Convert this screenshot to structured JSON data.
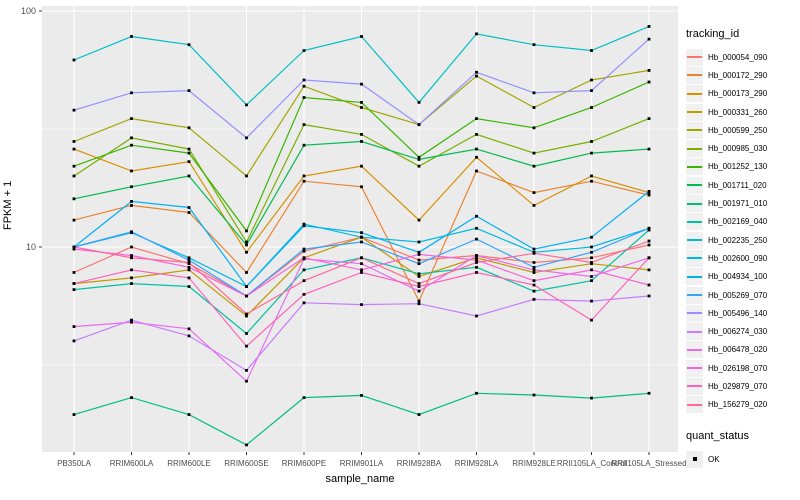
{
  "chart_data": {
    "type": "line",
    "xlabel": "sample_name",
    "ylabel": "FPKM + 1",
    "y_scale": "log10",
    "ylim": [
      1.3,
      105
    ],
    "grid": true,
    "panel_bg": "#EBEBEB",
    "grid_color": "#FFFFFF",
    "marker_color": "#000000",
    "marker_shape": "square",
    "y_ticks": [
      {
        "label": "100",
        "value": 100
      },
      {
        "label": "10",
        "value": 10
      }
    ],
    "y_minor": [
      31.62,
      3.162
    ],
    "categories": [
      "PB350LA",
      "RRIM600LA",
      "RRIM600LE",
      "RRIM600SE",
      "RRIM600PE",
      "RRIM901LA",
      "RRIM928BA",
      "RRIM928LA",
      "RRIM928LE",
      "RRII105LA_Control",
      "RRII105LA_Stressed"
    ],
    "legend_title": "tracking_id",
    "quant_legend_title": "quant_status",
    "quant_status_label": "OK",
    "series": [
      {
        "name": "Hb_000054_090",
        "color": "#F8766D",
        "values": [
          7.8,
          10,
          8.5,
          6.2,
          9.6,
          11,
          8.8,
          9.2,
          8.6,
          9,
          10.2
        ]
      },
      {
        "name": "Hb_000172_290",
        "color": "#EA8331",
        "values": [
          13,
          15,
          14,
          7.8,
          19,
          18,
          5.9,
          21,
          17,
          19,
          16.6
        ]
      },
      {
        "name": "Hb_000173_290",
        "color": "#D89000",
        "values": [
          26,
          21,
          23,
          9.5,
          20,
          22,
          13,
          24,
          15,
          20,
          17
        ]
      },
      {
        "name": "Hb_000331_260",
        "color": "#C09B00",
        "values": [
          7,
          7.4,
          8,
          5.1,
          9,
          11,
          7.5,
          9,
          7.8,
          8.5,
          8
        ]
      },
      {
        "name": "Hb_000599_250",
        "color": "#A3A500",
        "values": [
          28,
          35,
          32,
          20,
          48,
          39,
          33,
          53,
          39,
          51,
          56
        ]
      },
      {
        "name": "Hb_000985_030",
        "color": "#7CAE00",
        "values": [
          20,
          29,
          26,
          10.5,
          33,
          30,
          22,
          30,
          25,
          28,
          35
        ]
      },
      {
        "name": "Hb_001252_130",
        "color": "#39B600",
        "values": [
          22,
          27,
          25,
          11.7,
          43,
          41,
          24,
          35,
          32,
          39,
          50
        ]
      },
      {
        "name": "Hb_001711_020",
        "color": "#00BB4E",
        "values": [
          16,
          18,
          20,
          10.2,
          27,
          28,
          23.5,
          26,
          22,
          25,
          26
        ]
      },
      {
        "name": "Hb_001971_010",
        "color": "#00BF7D",
        "values": [
          1.95,
          2.3,
          1.95,
          1.45,
          2.3,
          2.35,
          1.95,
          2.4,
          2.36,
          2.29,
          2.4
        ]
      },
      {
        "name": "Hb_002169_040",
        "color": "#00C1A3",
        "values": [
          6.6,
          7,
          6.8,
          4.3,
          8,
          9,
          7.7,
          8.2,
          6.5,
          7.2,
          11.8
        ]
      },
      {
        "name": "Hb_002235_250",
        "color": "#00BFC4",
        "values": [
          62,
          78,
          72,
          40,
          68,
          78,
          41,
          80,
          72,
          68,
          86
        ]
      },
      {
        "name": "Hb_002600_090",
        "color": "#00BAE0",
        "values": [
          10,
          11.5,
          9,
          6.8,
          12.5,
          11,
          10.5,
          12,
          9.5,
          10,
          12
        ]
      },
      {
        "name": "Hb_004934_100",
        "color": "#00B0F6",
        "values": [
          10,
          15.6,
          14.7,
          6.8,
          12.3,
          11.5,
          9.5,
          13.5,
          9.8,
          11,
          17.2
        ]
      },
      {
        "name": "Hb_005269_070",
        "color": "#35A2FF",
        "values": [
          10,
          11.6,
          8.8,
          6.2,
          9.8,
          10.5,
          8.5,
          10.8,
          8.2,
          9.5,
          12
        ]
      },
      {
        "name": "Hb_005496_140",
        "color": "#9590FF",
        "values": [
          38,
          45,
          46,
          29,
          51,
          49,
          33,
          55,
          45,
          46,
          76
        ]
      },
      {
        "name": "Hb_006274_030",
        "color": "#C77CFF",
        "values": [
          4,
          4.9,
          4.2,
          3,
          5.8,
          5.7,
          5.75,
          5.1,
          6,
          5.9,
          6.2
        ]
      },
      {
        "name": "Hb_006478_020",
        "color": "#E76BF3",
        "values": [
          4.6,
          4.8,
          4.5,
          2.7,
          8.9,
          8.5,
          6.5,
          9.2,
          8,
          7.5,
          9
        ]
      },
      {
        "name": "Hb_026198_070",
        "color": "#FA62DB",
        "values": [
          9.8,
          9.2,
          8.2,
          6.2,
          9,
          8,
          9.3,
          8.8,
          7.2,
          8,
          6.9
        ]
      },
      {
        "name": "Hb_029879_070",
        "color": "#FF62BC",
        "values": [
          7,
          8,
          7.4,
          3.8,
          6.3,
          7.8,
          6.8,
          7.8,
          6.9,
          4.9,
          9
        ]
      },
      {
        "name": "Hb_156279_020",
        "color": "#FF6A98",
        "values": [
          10,
          9,
          8.6,
          5.2,
          7.2,
          9,
          7,
          8.6,
          9.4,
          8.6,
          10.6
        ]
      }
    ]
  }
}
